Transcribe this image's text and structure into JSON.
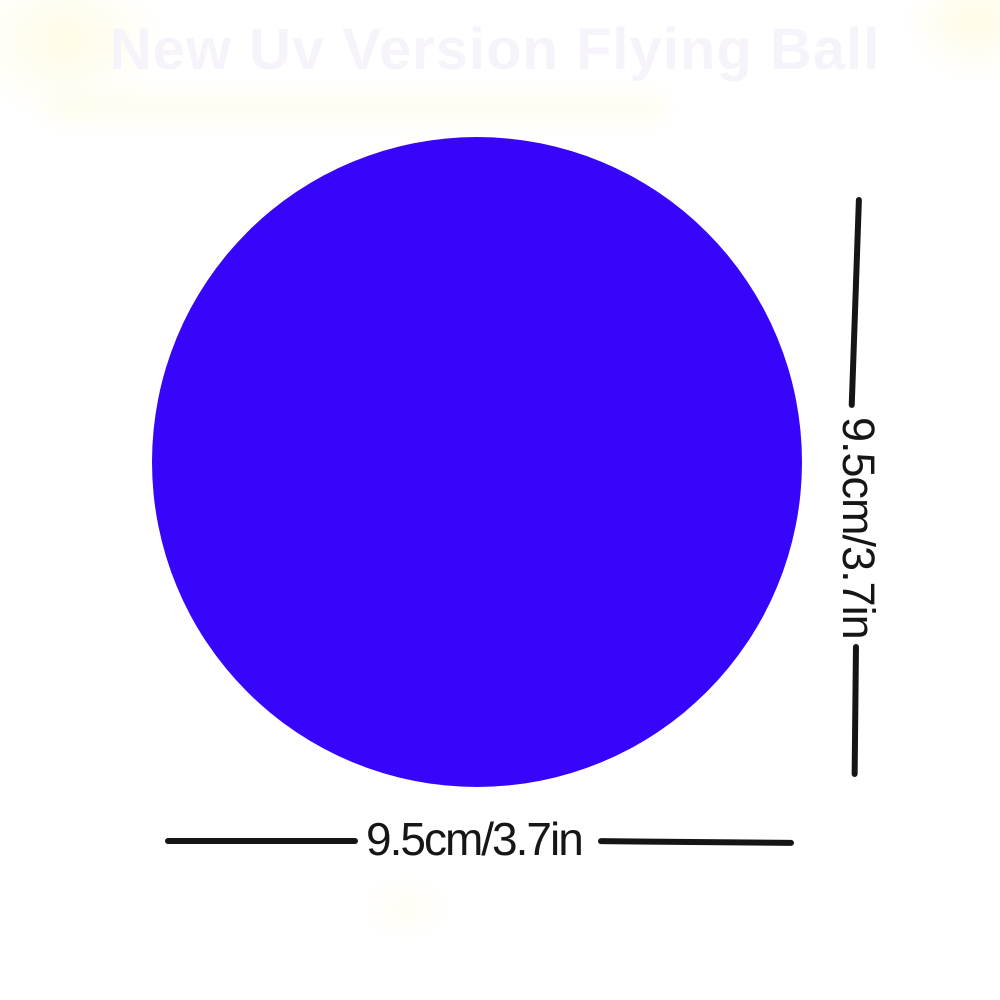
{
  "watermark": {
    "title": "New Uv Version Flying Ball"
  },
  "product": {
    "name": "flying-ball",
    "shape": "circle"
  },
  "dimensions": {
    "vertical_label": "9.5cm/3.7in",
    "horizontal_label": "9.5cm/3.7in"
  },
  "colors": {
    "ball_blue": "#3705fa",
    "dimension_line": "#151515",
    "label_text": "#161616",
    "watermark_text": "#f7f3fa",
    "background": "#ffffff"
  }
}
